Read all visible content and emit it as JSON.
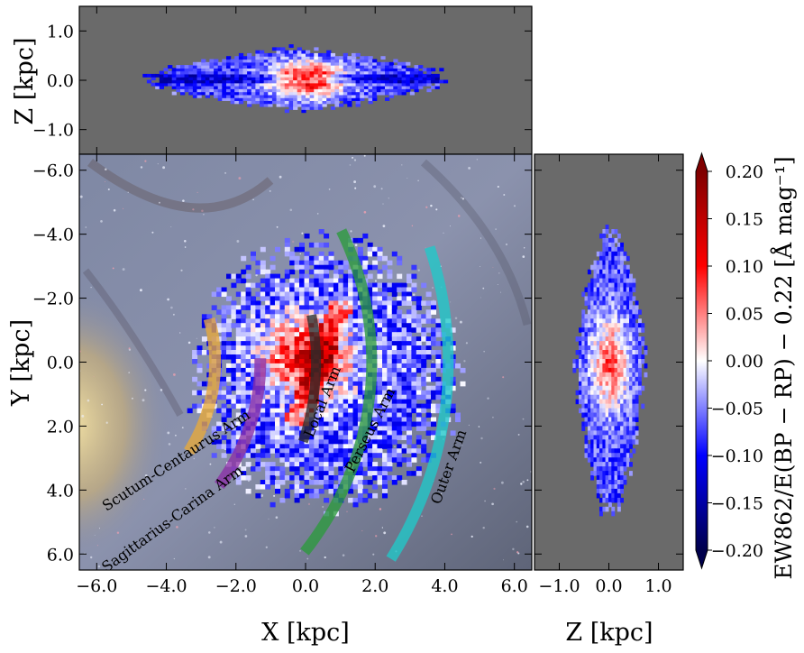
{
  "chart_data": [
    {
      "panel": "top",
      "type": "heatmap",
      "xlim": [
        -6.5,
        6.5
      ],
      "ylim": [
        -1.5,
        1.5
      ],
      "ylabel": "Z [kpc]",
      "ytick_labels": [
        "1.0",
        "0.0",
        "−1.0"
      ],
      "yticks": [
        1.0,
        0.0,
        -1.0
      ]
    },
    {
      "panel": "main",
      "type": "heatmap",
      "xlim": [
        -6.5,
        6.5
      ],
      "ylim": [
        -6.5,
        6.5
      ],
      "y_inverted": true,
      "xlabel": "X [kpc]",
      "ylabel": "Y [kpc]",
      "xticks": [
        -6,
        -4,
        -2,
        0,
        2,
        4,
        6
      ],
      "xtick_labels": [
        "−6.0",
        "−4.0",
        "−2.0",
        "0.0",
        "2.0",
        "4.0",
        "6.0"
      ],
      "yticks": [
        -6,
        -4,
        -2,
        0,
        2,
        4,
        6
      ],
      "ytick_labels": [
        "−6.0",
        "−4.0",
        "−2.0",
        "0.0",
        "2.0",
        "4.0",
        "6.0"
      ],
      "spiral_arms": [
        {
          "name": "Scutum-Centaurus Arm",
          "color": "#e8a93a"
        },
        {
          "name": "Sagittarius-Carina Arm",
          "color": "#8b2fa6"
        },
        {
          "name": "Local Arm",
          "color": "#2b2b2b"
        },
        {
          "name": "Perseus Arm",
          "color": "#2c9a3c"
        },
        {
          "name": "Outer Arm",
          "color": "#20c9c9"
        }
      ]
    },
    {
      "panel": "right",
      "type": "heatmap",
      "xlim": [
        -1.5,
        1.5
      ],
      "ylim": [
        -6.5,
        6.5
      ],
      "xlabel": "Z [kpc]",
      "xticks": [
        -1.0,
        0.0,
        1.0
      ],
      "xtick_labels": [
        "−1.0",
        "0.0",
        "1.0"
      ]
    },
    {
      "panel": "colorbar",
      "type": "colorbar",
      "colormap": "seismic",
      "vmin": -0.2,
      "vmax": 0.2,
      "extend": "both",
      "ticks": [
        0.2,
        0.15,
        0.1,
        0.05,
        0.0,
        -0.05,
        -0.1,
        -0.15,
        -0.2
      ],
      "tick_labels": [
        "0.20",
        "0.15",
        "0.10",
        "0.05",
        "0.00",
        "−0.05",
        "−0.10",
        "−0.15",
        "−0.20"
      ],
      "label": "EW862/E(BP − RP) − 0.22 [Å mag⁻¹]"
    }
  ],
  "colors": {
    "panel_background": "#6a6a6a",
    "cmap_low": "#00004c",
    "cmap_mid": "#ffffff",
    "cmap_high": "#7f0000"
  }
}
